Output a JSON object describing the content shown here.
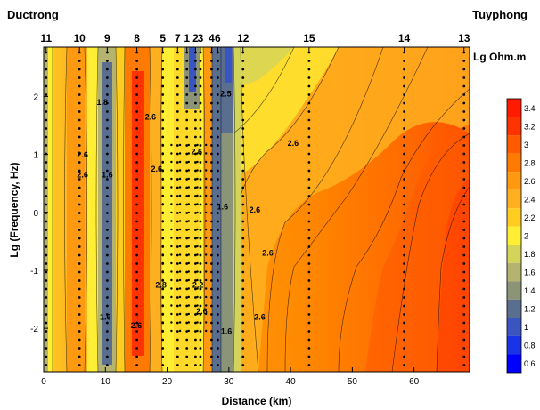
{
  "chart_data": {
    "type": "heatmap",
    "title_left": "Ductrong",
    "title_right": "Tuyphong",
    "xlabel": "Distance (km)",
    "ylabel": "Lg (Frequency, Hz)",
    "colorbar_title": "Lg Ohm.m",
    "xlim": [
      0,
      69
    ],
    "ylim": [
      -2.75,
      2.85
    ],
    "x_ticks": [
      0,
      10,
      20,
      30,
      40,
      50,
      60
    ],
    "y_ticks": [
      2,
      1,
      0,
      -1,
      -2
    ],
    "x_tick_labels": [
      "0",
      "10",
      "20",
      "30",
      "40",
      "50",
      "60"
    ],
    "y_tick_labels": [
      "2",
      "1",
      "0",
      "-1",
      "-2"
    ],
    "colorbar_ticks": [
      "3.4",
      "3.2",
      "3",
      "2.8",
      "2.6",
      "2.4",
      "2.2",
      "2",
      "1.8",
      "1.6",
      "1.4",
      "1.2",
      "1",
      "0.8",
      "0.6"
    ],
    "colorbar_colors": [
      "#ff1a00",
      "#ff3300",
      "#ff5a00",
      "#ff7a00",
      "#ff9a10",
      "#ffb020",
      "#ffcc20",
      "#ffee33",
      "#d4d45a",
      "#b4b470",
      "#8c9478",
      "#5a6e90",
      "#3b55c0",
      "#1a33e6",
      "#0000ff"
    ],
    "stations": [
      {
        "label": "11",
        "x": 0.4
      },
      {
        "label": "10",
        "x": 5.8
      },
      {
        "label": "9",
        "x": 10.3
      },
      {
        "label": "8",
        "x": 15.1
      },
      {
        "label": "5",
        "x": 19.3
      },
      {
        "label": "7",
        "x": 21.7
      },
      {
        "label": "1",
        "x": 23.2
      },
      {
        "label": "2",
        "x": 24.6
      },
      {
        "label": "3",
        "x": 25.4
      },
      {
        "label": "4",
        "x": 27.2
      },
      {
        "label": "6",
        "x": 28.2
      },
      {
        "label": "12",
        "x": 32.3
      },
      {
        "label": "15",
        "x": 43.0
      },
      {
        "label": "14",
        "x": 58.4
      },
      {
        "label": "13",
        "x": 68.1
      }
    ],
    "contour_labels": [
      {
        "text": "1.8",
        "x": 9.5,
        "y": 1.85
      },
      {
        "text": "2.6",
        "x": 17.3,
        "y": 1.6
      },
      {
        "text": "2.6",
        "x": 6.3,
        "y": 0.95
      },
      {
        "text": "2.6",
        "x": 6.3,
        "y": 0.6
      },
      {
        "text": "1.6",
        "x": 10.3,
        "y": 0.6
      },
      {
        "text": "2.6",
        "x": 18.3,
        "y": 0.7
      },
      {
        "text": "2.6",
        "x": 40.4,
        "y": 1.15
      },
      {
        "text": "2.6",
        "x": 36.3,
        "y": -0.75
      },
      {
        "text": "2.6",
        "x": 34.2,
        "y": 0.0
      },
      {
        "text": "1.6",
        "x": 29.0,
        "y": 0.05
      },
      {
        "text": "2.6",
        "x": 24.8,
        "y": 1.0
      },
      {
        "text": "2.8",
        "x": 19.0,
        "y": -1.3
      },
      {
        "text": "2.6",
        "x": 15.0,
        "y": -2.0
      },
      {
        "text": "1.6",
        "x": 10.0,
        "y": -1.85
      },
      {
        "text": "2.2",
        "x": 25.0,
        "y": -1.3
      },
      {
        "text": "2.6",
        "x": 25.6,
        "y": -1.75
      },
      {
        "text": "1.6",
        "x": 29.6,
        "y": -2.1
      },
      {
        "text": "2.6",
        "x": 35.0,
        "y": -1.85
      },
      {
        "text": "2.5",
        "x": 29.5,
        "y": 2.0
      }
    ]
  }
}
